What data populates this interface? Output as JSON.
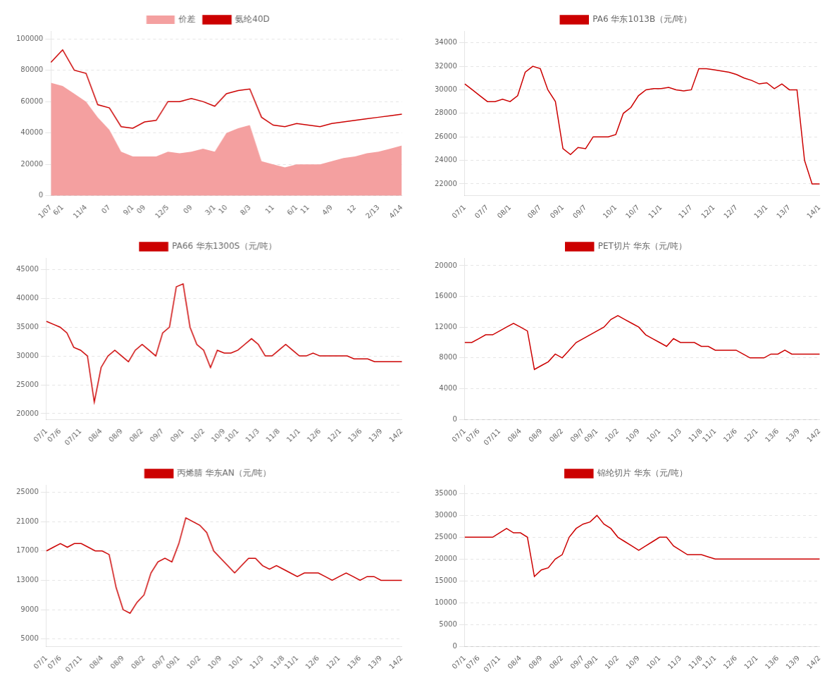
{
  "chart_data": [
    {
      "type": "line",
      "categories": [
        "1/07",
        "6/1",
        null,
        "11/4",
        null,
        "07",
        null,
        "9/1",
        "09",
        null,
        "12/5",
        null,
        "09",
        null,
        "3/1",
        "10",
        null,
        "8/3",
        null,
        "11",
        null,
        "6/1",
        "11",
        null,
        "4/9",
        null,
        "12",
        null,
        "2/13",
        null,
        "4/14"
      ],
      "series": [
        {
          "name": "价差",
          "type": "area",
          "color": "#f4a0a0",
          "values": [
            72000,
            70000,
            65000,
            60000,
            50000,
            42000,
            28000,
            25000,
            25000,
            25000,
            28000,
            27000,
            28000,
            30000,
            28000,
            40000,
            43000,
            45000,
            22000,
            20000,
            18000,
            20000,
            20000,
            20000,
            22000,
            24000,
            25000,
            27000,
            28000,
            30000,
            32000
          ]
        },
        {
          "name": "氨纶40D",
          "type": "line",
          "color": "#cc0000",
          "values": [
            85000,
            93000,
            80000,
            78000,
            58000,
            56000,
            44000,
            43000,
            47000,
            48000,
            60000,
            60000,
            62000,
            60000,
            57000,
            65000,
            67000,
            68000,
            50000,
            45000,
            44000,
            46000,
            45000,
            44000,
            46000,
            47000,
            48000,
            49000,
            50000,
            51000,
            52000
          ]
        }
      ],
      "ylim": [
        0,
        105000
      ],
      "yticks": [
        0,
        20000,
        40000,
        60000,
        80000,
        100000
      ],
      "grid": "y",
      "legend": "top"
    },
    {
      "type": "line",
      "categories": [
        "07/1",
        null,
        null,
        "07/7",
        null,
        null,
        "08/1",
        null,
        null,
        null,
        "08/7",
        null,
        null,
        "09/1",
        null,
        null,
        "09/7",
        null,
        null,
        null,
        "10/1",
        null,
        null,
        "10/7",
        null,
        null,
        "11/1",
        null,
        null,
        null,
        "11/7",
        null,
        null,
        "12/1",
        null,
        null,
        "12/7",
        null,
        null,
        null,
        "13/1",
        null,
        null,
        "13/7",
        null,
        null,
        null,
        "14/1"
      ],
      "series": [
        {
          "name": "PA6 华东1013B（元/吨）",
          "color": "#cc0000",
          "values": [
            30500,
            30000,
            29500,
            29000,
            29000,
            29200,
            29000,
            29500,
            31500,
            32000,
            31800,
            30000,
            29000,
            25000,
            24500,
            25100,
            25000,
            26000,
            26000,
            26000,
            26200,
            28000,
            28500,
            29500,
            30000,
            30100,
            30100,
            30200,
            30000,
            29900,
            30000,
            31800,
            31800,
            31700,
            31600,
            31500,
            31300,
            31000,
            30800,
            30500,
            30600,
            30100,
            30500,
            30000,
            30000,
            24000,
            22000,
            22000
          ]
        }
      ],
      "ylim": [
        21000,
        35000
      ],
      "yticks": [
        22000,
        24000,
        26000,
        28000,
        30000,
        32000,
        34000
      ],
      "grid": "y",
      "legend": "top"
    },
    {
      "type": "line",
      "categories": [
        "07/1",
        null,
        "07/6",
        null,
        null,
        "07/11",
        null,
        null,
        "08/4",
        null,
        null,
        "08/9",
        null,
        null,
        "08/2",
        null,
        null,
        "09/7",
        null,
        null,
        "09/1",
        null,
        null,
        "10/2",
        null,
        null,
        "10/9",
        null,
        "10/1",
        null,
        null,
        "11/3",
        null,
        null,
        "11/8",
        null,
        null,
        "11/1",
        null,
        null,
        "12/6",
        null,
        null,
        "12/1",
        null,
        null,
        "13/6",
        null,
        null,
        "13/9",
        null,
        null,
        "14/2"
      ],
      "series": [
        {
          "name": "PA66 华东1300S（元/吨）",
          "color": "#cc0000",
          "values": [
            36000,
            35500,
            35000,
            34000,
            31500,
            31000,
            30000,
            22000,
            28000,
            30000,
            31000,
            30000,
            29000,
            31000,
            32000,
            31000,
            30000,
            34000,
            35000,
            42000,
            42500,
            35000,
            32000,
            31000,
            28000,
            31000,
            30500,
            30500,
            31000,
            32000,
            33000,
            32000,
            30000,
            30000,
            31000,
            32000,
            31000,
            30000,
            30000,
            30500,
            30000,
            30000,
            30000,
            30000,
            30000,
            29500,
            29500,
            29500,
            29000,
            29000,
            29000,
            29000,
            29000
          ]
        }
      ],
      "ylim": [
        19000,
        47000
      ],
      "yticks": [
        20000,
        25000,
        30000,
        35000,
        40000,
        45000
      ],
      "grid": "y",
      "legend": "top"
    },
    {
      "type": "line",
      "categories": [
        "07/1",
        null,
        "07/6",
        null,
        null,
        "07/11",
        null,
        null,
        "08/4",
        null,
        null,
        "08/9",
        null,
        null,
        "08/2",
        null,
        null,
        "09/7",
        null,
        "09/1",
        null,
        null,
        "10/2",
        null,
        null,
        "10/9",
        null,
        null,
        "10/1",
        null,
        null,
        "11/3",
        null,
        null,
        "11/8",
        null,
        "11/1",
        null,
        null,
        "12/6",
        null,
        null,
        "12/1",
        null,
        null,
        "13/6",
        null,
        null,
        "13/9",
        null,
        null,
        "14/2"
      ],
      "series": [
        {
          "name": "PET切片 华东（元/吨）",
          "color": "#cc0000",
          "values": [
            10000,
            10000,
            10500,
            11000,
            11000,
            11500,
            12000,
            12500,
            12000,
            11500,
            6500,
            7000,
            7500,
            8500,
            8000,
            9000,
            10000,
            10500,
            11000,
            11500,
            12000,
            13000,
            13500,
            13000,
            12500,
            12000,
            11000,
            10500,
            10000,
            9500,
            10500,
            10000,
            10000,
            10000,
            9500,
            9500,
            9000,
            9000,
            9000,
            9000,
            8500,
            8000,
            8000,
            8000,
            8500,
            8500,
            9000,
            8500,
            8500,
            8500,
            8500,
            8500
          ]
        }
      ],
      "ylim": [
        0,
        21000
      ],
      "yticks": [
        0,
        4000,
        8000,
        12000,
        16000,
        20000
      ],
      "grid": "y",
      "legend": "top"
    },
    {
      "type": "line",
      "categories": [
        "07/1",
        null,
        "07/6",
        null,
        null,
        "07/11",
        null,
        null,
        "08/4",
        null,
        null,
        "08/9",
        null,
        null,
        "08/2",
        null,
        null,
        "09/7",
        null,
        "09/1",
        null,
        null,
        "10/2",
        null,
        null,
        "10/9",
        null,
        null,
        "10/1",
        null,
        null,
        "11/3",
        null,
        null,
        "11/8",
        null,
        "11/1",
        null,
        null,
        "12/6",
        null,
        null,
        "12/1",
        null,
        null,
        "13/6",
        null,
        null,
        "13/9",
        null,
        null,
        "14/2"
      ],
      "series": [
        {
          "name": "丙烯腈 华东AN（元/吨）",
          "color": "#cc0000",
          "values": [
            17000,
            17500,
            18000,
            17500,
            18000,
            18000,
            17500,
            17000,
            17000,
            16500,
            12000,
            9000,
            8500,
            10000,
            11000,
            14000,
            15500,
            16000,
            15500,
            18000,
            21500,
            21000,
            20500,
            19500,
            17000,
            16000,
            15000,
            14000,
            15000,
            16000,
            16000,
            15000,
            14500,
            15000,
            14500,
            14000,
            13500,
            14000,
            14000,
            14000,
            13500,
            13000,
            13500,
            14000,
            13500,
            13000,
            13500,
            13500,
            13000,
            13000,
            13000,
            13000
          ]
        }
      ],
      "ylim": [
        4000,
        26000
      ],
      "yticks": [
        5000,
        9000,
        13000,
        17000,
        21000,
        25000
      ],
      "grid": "y",
      "legend": "top"
    },
    {
      "type": "line",
      "categories": [
        "07/1",
        null,
        "07/6",
        null,
        null,
        "07/11",
        null,
        null,
        "08/4",
        null,
        null,
        "08/9",
        null,
        null,
        "08/2",
        null,
        null,
        "09/7",
        null,
        "09/1",
        null,
        null,
        "10/2",
        null,
        null,
        "10/9",
        null,
        null,
        "10/1",
        null,
        null,
        "11/3",
        null,
        null,
        "11/8",
        null,
        "11/1",
        null,
        null,
        "12/6",
        null,
        null,
        "12/1",
        null,
        null,
        "13/6",
        null,
        null,
        "13/9",
        null,
        null,
        "14/2"
      ],
      "series": [
        {
          "name": "锦纶切片 华东（元/吨）",
          "color": "#cc0000",
          "values": [
            25000,
            25000,
            25000,
            25000,
            25000,
            26000,
            27000,
            26000,
            26000,
            25000,
            16000,
            17500,
            18000,
            20000,
            21000,
            25000,
            27000,
            28000,
            28500,
            30000,
            28000,
            27000,
            25000,
            24000,
            23000,
            22000,
            23000,
            24000,
            25000,
            25000,
            23000,
            22000,
            21000,
            21000,
            21000,
            20500,
            20000,
            20000,
            20000,
            20000,
            20000,
            20000,
            20000,
            20000,
            20000,
            20000,
            20000,
            20000,
            20000,
            20000,
            20000,
            20000
          ]
        }
      ],
      "ylim": [
        0,
        37000
      ],
      "yticks": [
        0,
        5000,
        10000,
        15000,
        20000,
        25000,
        30000,
        35000
      ],
      "grid": "y",
      "legend": "top"
    }
  ]
}
